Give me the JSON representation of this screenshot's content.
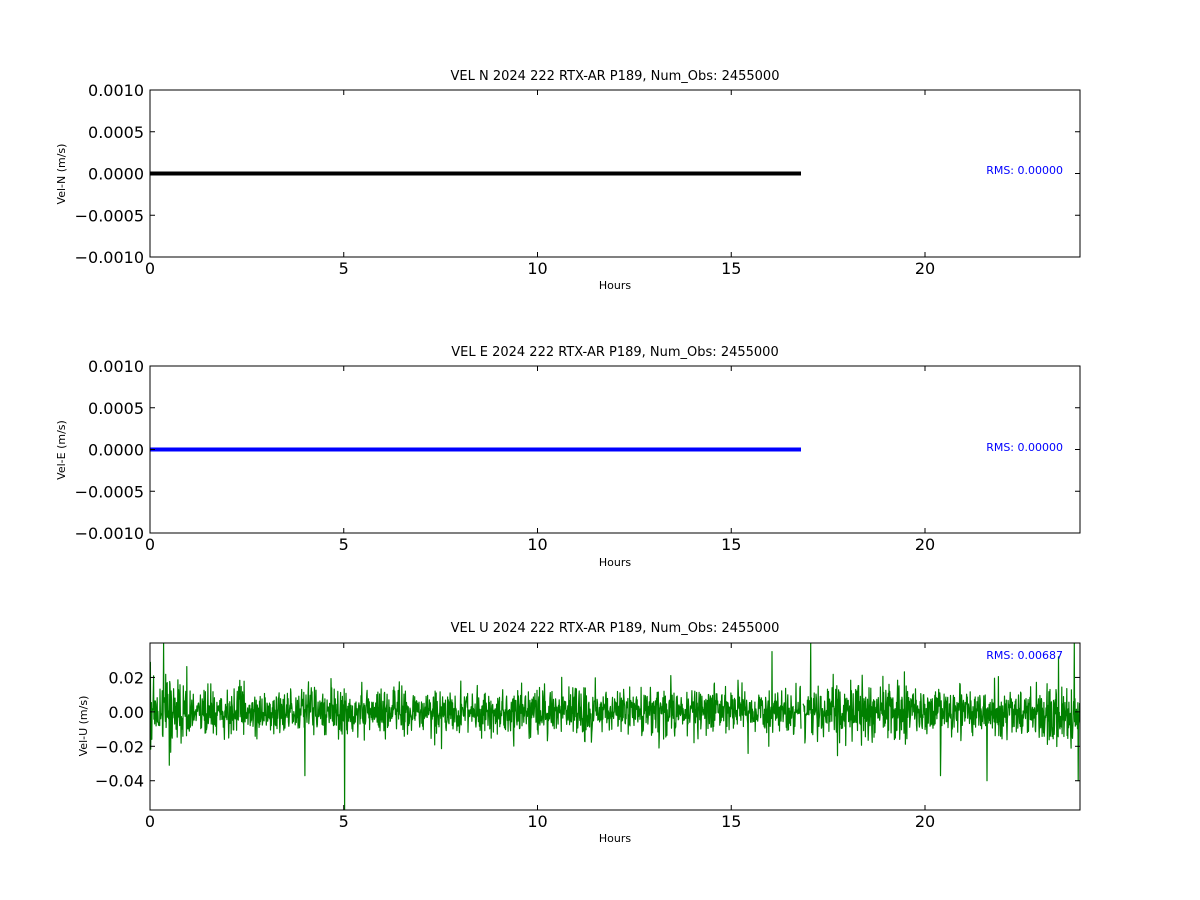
{
  "chart_data": [
    {
      "type": "line",
      "title": "VEL N 2024 222 RTX-AR  P189, Num_Obs: 2455000",
      "xlabel": "Hours",
      "ylabel": "Vel-N (m/s)",
      "xlim": [
        0,
        24
      ],
      "ylim": [
        -0.001,
        0.001
      ],
      "x_ticks": [
        0,
        5,
        10,
        15,
        20
      ],
      "x_tick_labels": [
        "0",
        "5",
        "10",
        "15",
        "20"
      ],
      "y_ticks": [
        -0.001,
        -0.0005,
        0,
        0.0005,
        0.001
      ],
      "y_tick_labels": [
        "−0.0010",
        "−0.0005",
        "0.0000",
        "0.0005",
        "0.0010"
      ],
      "grid": false,
      "color": "#000000",
      "rms_label": "RMS:  0.00000",
      "rms_color": "#0000ff",
      "series": [
        {
          "x": [
            0,
            16.8,
            16.85,
            24
          ],
          "y": [
            0,
            0,
            null,
            0
          ]
        }
      ]
    },
    {
      "type": "line",
      "title": "VEL E 2024 222 RTX-AR  P189, Num_Obs: 2455000",
      "xlabel": "Hours",
      "ylabel": "Vel-E (m/s)",
      "xlim": [
        0,
        24
      ],
      "ylim": [
        -0.001,
        0.001
      ],
      "x_ticks": [
        0,
        5,
        10,
        15,
        20
      ],
      "x_tick_labels": [
        "0",
        "5",
        "10",
        "15",
        "20"
      ],
      "y_ticks": [
        -0.001,
        -0.0005,
        0,
        0.0005,
        0.001
      ],
      "y_tick_labels": [
        "−0.0010",
        "−0.0005",
        "0.0000",
        "0.0005",
        "0.0010"
      ],
      "grid": false,
      "color": "#0000ff",
      "rms_label": "RMS:  0.00000",
      "rms_color": "#0000ff",
      "series": [
        {
          "x": [
            0,
            16.8,
            16.85,
            24
          ],
          "y": [
            0,
            0,
            null,
            0
          ]
        }
      ]
    },
    {
      "type": "line",
      "title": "VEL U 2024 222 RTX-AR  P189, Num_Obs: 2455000",
      "xlabel": "Hours",
      "ylabel": "Vel-U (m/s)",
      "xlim": [
        0,
        24
      ],
      "ylim": [
        -0.057,
        0.04
      ],
      "x_ticks": [
        0,
        5,
        10,
        15,
        20
      ],
      "x_tick_labels": [
        "0",
        "5",
        "10",
        "15",
        "20"
      ],
      "y_ticks": [
        -0.04,
        -0.02,
        0,
        0.02
      ],
      "y_tick_labels": [
        "−0.04",
        "−0.02",
        "0.00",
        "0.02"
      ],
      "grid": false,
      "color": "#008000",
      "rms_label": "RMS:  0.00687",
      "rms_color": "#0000ff",
      "noise_rms": 0.00687,
      "gap_hours": [
        16.8,
        16.85
      ],
      "spikes": [
        {
          "x": 0.35,
          "y": 0.04
        },
        {
          "x": 0.5,
          "y": -0.031
        },
        {
          "x": 4.0,
          "y": -0.037
        },
        {
          "x": 5.02,
          "y": -0.057
        },
        {
          "x": 16.05,
          "y": 0.035
        },
        {
          "x": 17.05,
          "y": 0.04
        },
        {
          "x": 20.4,
          "y": -0.037
        },
        {
          "x": 21.6,
          "y": -0.04
        },
        {
          "x": 23.45,
          "y": 0.032
        },
        {
          "x": 23.85,
          "y": 0.04
        },
        {
          "x": 23.95,
          "y": -0.04
        }
      ]
    }
  ]
}
